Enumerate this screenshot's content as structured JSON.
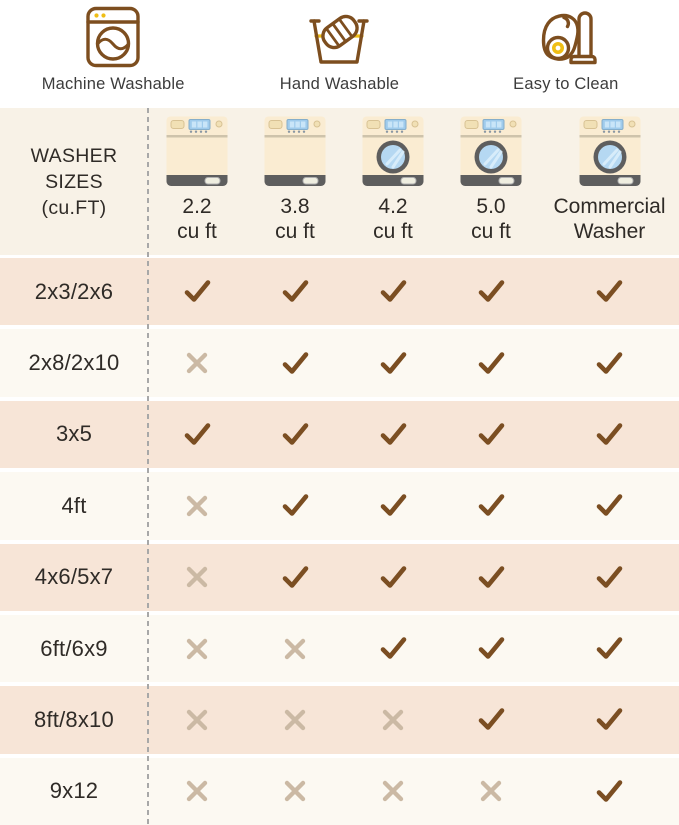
{
  "features": [
    {
      "label": "Machine Washable",
      "icon": "washing-machine-icon"
    },
    {
      "label": "Hand Washable",
      "icon": "hand-wash-icon"
    },
    {
      "label": "Easy to Clean",
      "icon": "vacuum-cleaner-icon"
    }
  ],
  "table": {
    "corner": {
      "line1": "WASHER",
      "line2": "SIZES",
      "line3": "(cu.FT)"
    },
    "columns": [
      {
        "line1": "2.2",
        "line2": "cu ft",
        "washer_type": "top-load"
      },
      {
        "line1": "3.8",
        "line2": "cu ft",
        "washer_type": "top-load"
      },
      {
        "line1": "4.2",
        "line2": "cu ft",
        "washer_type": "front-load"
      },
      {
        "line1": "5.0",
        "line2": "cu ft",
        "washer_type": "front-load"
      },
      {
        "line1": "Commercial",
        "line2": "Washer",
        "washer_type": "front-load"
      }
    ],
    "rows": [
      {
        "label": "2x3/2x6",
        "cells": [
          true,
          true,
          true,
          true,
          true
        ]
      },
      {
        "label": "2x8/2x10",
        "cells": [
          false,
          true,
          true,
          true,
          true
        ]
      },
      {
        "label": "3x5",
        "cells": [
          true,
          true,
          true,
          true,
          true
        ]
      },
      {
        "label": "4ft",
        "cells": [
          false,
          true,
          true,
          true,
          true
        ]
      },
      {
        "label": "4x6/5x7",
        "cells": [
          false,
          true,
          true,
          true,
          true
        ]
      },
      {
        "label": "6ft/6x9",
        "cells": [
          false,
          false,
          true,
          true,
          true
        ]
      },
      {
        "label": "8ft/8x10",
        "cells": [
          false,
          false,
          false,
          true,
          true
        ]
      },
      {
        "label": "9x12",
        "cells": [
          false,
          false,
          false,
          false,
          true
        ]
      }
    ]
  },
  "colors": {
    "header_bg": "#F8F2E7",
    "row_alt_bg": "#F7E5D7",
    "row_bg": "#FCF9F2",
    "check": "#7B4E22",
    "cross": "#CBB9A4",
    "icon_brown": "#7D4E1F",
    "icon_yellow": "#EFBE15",
    "washer_body": "#FAECD2",
    "washer_dark": "#5E5E5E",
    "washer_glass": "#B5D8F2",
    "text_dark": "#2F2B27",
    "divider": "#A8A8A8"
  },
  "chart_data": {
    "type": "table",
    "features_legend": [
      "Machine Washable",
      "Hand Washable",
      "Easy to Clean"
    ],
    "row_header": "WASHER SIZES (cu.FT)",
    "columns": [
      "2.2 cu ft",
      "3.8 cu ft",
      "4.2 cu ft",
      "5.0 cu ft",
      "Commercial Washer"
    ],
    "rows": [
      "2x3/2x6",
      "2x8/2x10",
      "3x5",
      "4ft",
      "4x6/5x7",
      "6ft/6x9",
      "8ft/8x10",
      "9x12"
    ],
    "values": [
      [
        "yes",
        "yes",
        "yes",
        "yes",
        "yes"
      ],
      [
        "no",
        "yes",
        "yes",
        "yes",
        "yes"
      ],
      [
        "yes",
        "yes",
        "yes",
        "yes",
        "yes"
      ],
      [
        "no",
        "yes",
        "yes",
        "yes",
        "yes"
      ],
      [
        "no",
        "yes",
        "yes",
        "yes",
        "yes"
      ],
      [
        "no",
        "no",
        "yes",
        "yes",
        "yes"
      ],
      [
        "no",
        "no",
        "no",
        "yes",
        "yes"
      ],
      [
        "no",
        "no",
        "no",
        "no",
        "yes"
      ]
    ],
    "legend_position": "top",
    "grid": "off"
  }
}
